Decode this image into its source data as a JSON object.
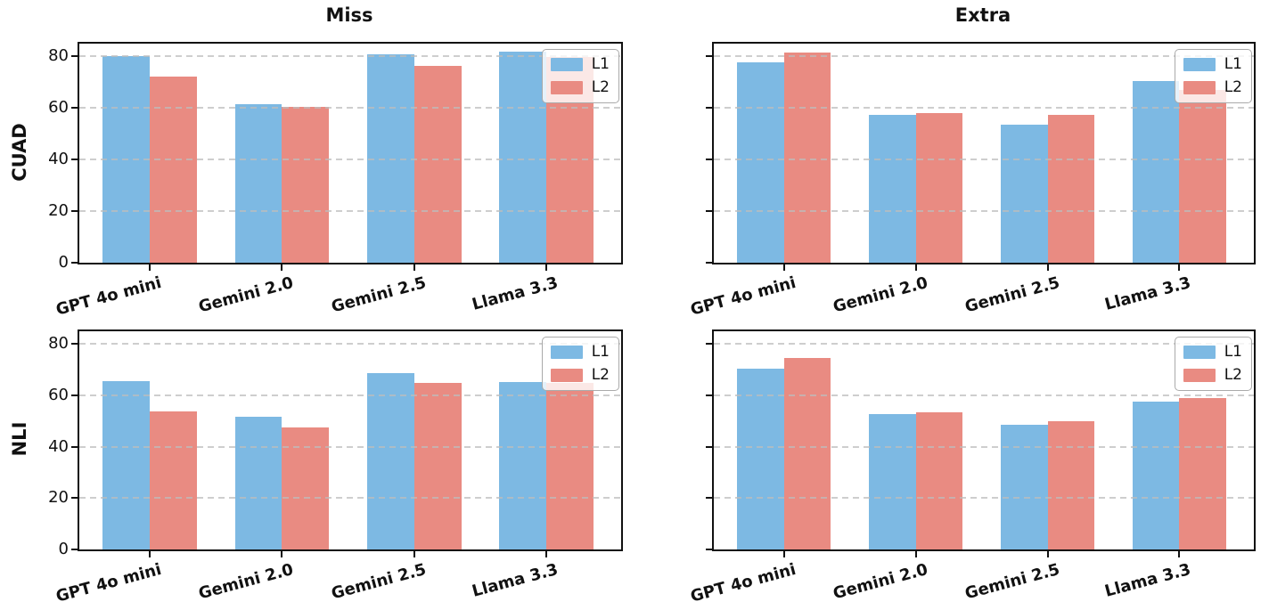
{
  "figure": {
    "background": "#ffffff",
    "col_titles": [
      "Miss",
      "Extra"
    ],
    "row_labels": [
      "CUAD",
      "NLI"
    ],
    "categories": [
      "GPT 4o mini",
      "Gemini 2.0",
      "Gemini 2.5",
      "Llama 3.3"
    ],
    "y_ticks": [
      0,
      20,
      40,
      60,
      80
    ],
    "legend_labels": [
      "L1",
      "L2"
    ],
    "colors": {
      "l1": "#7DB9E3",
      "l2": "#E98B82",
      "grid": "#bdbdbd",
      "spine": "#111111",
      "text": "#111111"
    }
  },
  "chart_data": [
    {
      "type": "bar",
      "id": "cuad-miss",
      "title": "Miss",
      "row_label": "CUAD",
      "categories": [
        "GPT 4o mini",
        "Gemini 2.0",
        "Gemini 2.5",
        "Llama 3.3"
      ],
      "series": [
        {
          "name": "L1",
          "color": "#7DB9E3",
          "values": [
            80.3,
            61.6,
            80.7,
            81.8
          ]
        },
        {
          "name": "L2",
          "color": "#E98B82",
          "values": [
            72.3,
            60.4,
            76.2,
            79.8
          ]
        }
      ],
      "ylim": [
        0,
        85
      ],
      "yticks": [
        0,
        20,
        40,
        60,
        80
      ],
      "show_y_tick_labels": true,
      "grid": "dashed horizontal, drawn over bars",
      "legend_position": "upper right"
    },
    {
      "type": "bar",
      "id": "cuad-extra",
      "title": "Extra",
      "row_label": "CUAD",
      "categories": [
        "GPT 4o mini",
        "Gemini 2.0",
        "Gemini 2.5",
        "Llama 3.3"
      ],
      "series": [
        {
          "name": "L1",
          "color": "#7DB9E3",
          "values": [
            77.7,
            57.2,
            53.4,
            70.5
          ]
        },
        {
          "name": "L2",
          "color": "#E98B82",
          "values": [
            81.7,
            58.0,
            57.3,
            67.0
          ]
        }
      ],
      "ylim": [
        0,
        85
      ],
      "yticks": [
        0,
        20,
        40,
        60,
        80
      ],
      "show_y_tick_labels": false,
      "grid": "dashed horizontal, drawn over bars",
      "legend_position": "upper right"
    },
    {
      "type": "bar",
      "id": "nli-miss",
      "title": "",
      "row_label": "NLI",
      "categories": [
        "GPT 4o mini",
        "Gemini 2.0",
        "Gemini 2.5",
        "Llama 3.3"
      ],
      "series": [
        {
          "name": "L1",
          "color": "#7DB9E3",
          "values": [
            65.7,
            51.8,
            68.7,
            65.2
          ]
        },
        {
          "name": "L2",
          "color": "#E98B82",
          "values": [
            53.8,
            47.6,
            64.8,
            64.8
          ]
        }
      ],
      "ylim": [
        0,
        85
      ],
      "yticks": [
        0,
        20,
        40,
        60,
        80
      ],
      "show_y_tick_labels": true,
      "grid": "dashed horizontal, drawn over bars",
      "legend_position": "upper right"
    },
    {
      "type": "bar",
      "id": "nli-extra",
      "title": "",
      "row_label": "NLI",
      "categories": [
        "GPT 4o mini",
        "Gemini 2.0",
        "Gemini 2.5",
        "Llama 3.3"
      ],
      "series": [
        {
          "name": "L1",
          "color": "#7DB9E3",
          "values": [
            70.4,
            52.9,
            48.7,
            57.5
          ]
        },
        {
          "name": "L2",
          "color": "#E98B82",
          "values": [
            74.7,
            53.4,
            50.0,
            58.9
          ]
        }
      ],
      "ylim": [
        0,
        85
      ],
      "yticks": [
        0,
        20,
        40,
        60,
        80
      ],
      "show_y_tick_labels": false,
      "grid": "dashed horizontal, drawn over bars",
      "legend_position": "upper right"
    }
  ]
}
